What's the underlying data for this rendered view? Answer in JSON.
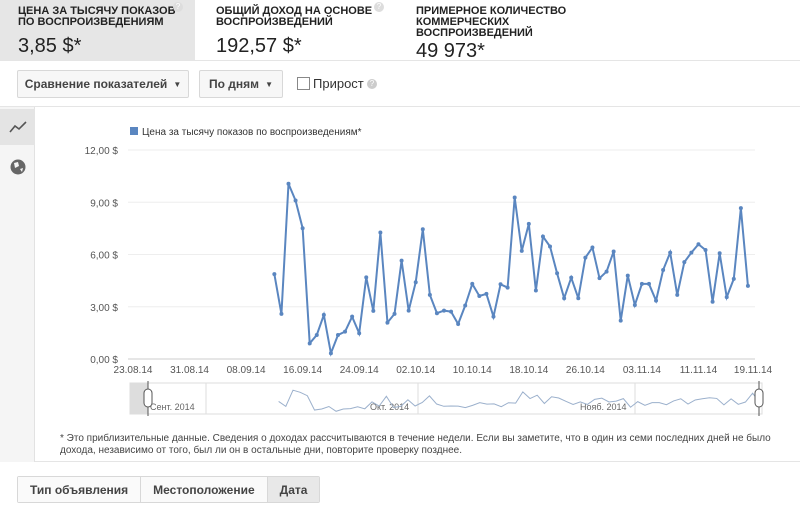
{
  "metrics": [
    {
      "label": "Цена за тысячу показов по воспроизведениям",
      "value": "3,85 $*"
    },
    {
      "label": "Общий доход на основе воспроизведений",
      "value": "192,57 $*"
    },
    {
      "label": "Примерное количество коммерческих воспроизведений",
      "value": "49 973*"
    }
  ],
  "toolbar": {
    "compare_label": "Сравнение показателей",
    "period_label": "По дням",
    "growth_label": "Прирост",
    "help_glyph": "?"
  },
  "side": {
    "line_icon": "line-chart-icon",
    "map_icon": "globe-icon"
  },
  "chart_data": {
    "type": "line",
    "legend": "Цена за тысячу показов по воспроизведениям*",
    "legend_position": "top-left",
    "color": "#5a86c0",
    "ylim": [
      0,
      12
    ],
    "yticks": [
      "0,00 $",
      "3,00 $",
      "6,00 $",
      "9,00 $",
      "12,00 $"
    ],
    "ytick_values": [
      0,
      3,
      6,
      9,
      12
    ],
    "xticks": [
      "23.08.14",
      "31.08.14",
      "08.09.14",
      "16.09.14",
      "24.09.14",
      "02.10.14",
      "10.10.14",
      "18.10.14",
      "26.10.14",
      "03.11.14",
      "11.11.14",
      "19.11.14"
    ],
    "x_start": "12.09.14",
    "x_unit": "day",
    "values": [
      4.87,
      2.59,
      10.06,
      9.1,
      7.51,
      0.9,
      1.38,
      2.53,
      0.33,
      1.38,
      1.57,
      2.43,
      1.48,
      4.69,
      2.76,
      7.26,
      2.09,
      2.59,
      5.65,
      2.78,
      4.41,
      7.45,
      3.68,
      2.63,
      2.78,
      2.72,
      2.01,
      3.07,
      4.31,
      3.62,
      3.74,
      2.43,
      4.29,
      4.1,
      9.27,
      6.21,
      7.76,
      3.93,
      7.03,
      6.46,
      4.92,
      3.49,
      4.67,
      3.49,
      5.82,
      6.4,
      4.64,
      5.02,
      6.17,
      2.2,
      4.79,
      3.1,
      4.31,
      4.31,
      3.35,
      5.11,
      6.11,
      3.68,
      5.56,
      6.11,
      6.59,
      6.26,
      3.29,
      6.07,
      3.55,
      4.6,
      8.66,
      4.2
    ],
    "navigator_months": [
      "Сент. 2014",
      "Окт. 2014",
      "Нояб. 2014"
    ]
  },
  "footnote": "* Это приблизительные данные. Сведения о доходах рассчитываются в течение недели. Если вы заметите, что в один из семи последних дней не было дохода, независимо от того, был ли он в остальные дни, повторите проверку позднее.",
  "tabs": [
    "Тип объявления",
    "Местоположение",
    "Дата"
  ]
}
